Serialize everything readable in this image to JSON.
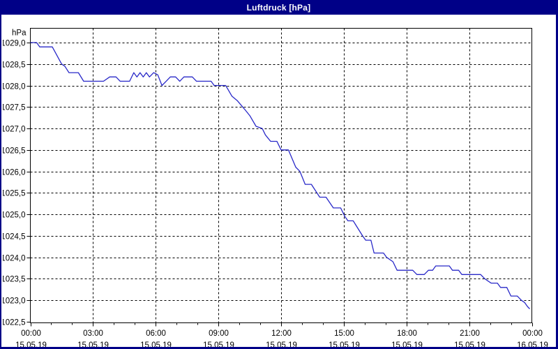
{
  "window": {
    "title": "Luftdruck [hPa]"
  },
  "colors": {
    "titlebar_bg": "#000087",
    "titlebar_text": "#FFFFFF",
    "window_border": "#000087",
    "page_bg": "#FFFFFF",
    "frame": "#000000",
    "grid": "#000000",
    "tick_text": "#000000",
    "line": "#2828C8"
  },
  "chart_data": {
    "type": "line",
    "title": "Luftdruck [hPa]",
    "ylabel": "hPa",
    "unit_label": "hPa",
    "xlabel": "",
    "ylim": [
      1022.5,
      1029.35
    ],
    "xlim_hours": [
      0,
      24
    ],
    "grid": "dashed",
    "legend_position": "none",
    "y_ticks": [
      {
        "value": 1029.0,
        "label": "1029,0"
      },
      {
        "value": 1028.5,
        "label": "1028,5"
      },
      {
        "value": 1028.0,
        "label": "1028,0"
      },
      {
        "value": 1027.5,
        "label": "1027,5"
      },
      {
        "value": 1027.0,
        "label": "1027,0"
      },
      {
        "value": 1026.5,
        "label": "1026,5"
      },
      {
        "value": 1026.0,
        "label": "1026,0"
      },
      {
        "value": 1025.5,
        "label": "1025,5"
      },
      {
        "value": 1025.0,
        "label": "1025,0"
      },
      {
        "value": 1024.5,
        "label": "1024,5"
      },
      {
        "value": 1024.0,
        "label": "1024,0"
      },
      {
        "value": 1023.5,
        "label": "1023,5"
      },
      {
        "value": 1023.0,
        "label": "1023,0"
      },
      {
        "value": 1022.5,
        "label": "1022,5"
      }
    ],
    "x_ticks": [
      {
        "hour": 0,
        "time": "00:00",
        "date": "15.05.19"
      },
      {
        "hour": 3,
        "time": "03:00",
        "date": "15.05.19"
      },
      {
        "hour": 6,
        "time": "06:00",
        "date": "15.05.19"
      },
      {
        "hour": 9,
        "time": "09:00",
        "date": "15.05.19"
      },
      {
        "hour": 12,
        "time": "12:00",
        "date": "15.05.19"
      },
      {
        "hour": 15,
        "time": "15:00",
        "date": "15.05.19"
      },
      {
        "hour": 18,
        "time": "18:00",
        "date": "15.05.19"
      },
      {
        "hour": 21,
        "time": "21:00",
        "date": "15.05.19"
      },
      {
        "hour": 24,
        "time": "00:00",
        "date": "16.05.19"
      }
    ],
    "minor_x_tick_every_hours": 1,
    "series": [
      {
        "name": "Luftdruck",
        "unit": "hPa",
        "points": [
          [
            0.0,
            1029.0
          ],
          [
            0.3,
            1029.0
          ],
          [
            0.45,
            1028.9
          ],
          [
            1.05,
            1028.9
          ],
          [
            1.5,
            1028.5
          ],
          [
            1.65,
            1028.45
          ],
          [
            1.85,
            1028.3
          ],
          [
            2.3,
            1028.3
          ],
          [
            2.55,
            1028.1
          ],
          [
            3.5,
            1028.1
          ],
          [
            3.8,
            1028.2
          ],
          [
            4.1,
            1028.2
          ],
          [
            4.3,
            1028.1
          ],
          [
            4.75,
            1028.1
          ],
          [
            4.95,
            1028.3
          ],
          [
            5.1,
            1028.2
          ],
          [
            5.25,
            1028.3
          ],
          [
            5.4,
            1028.2
          ],
          [
            5.55,
            1028.3
          ],
          [
            5.7,
            1028.2
          ],
          [
            5.9,
            1028.3
          ],
          [
            6.1,
            1028.25
          ],
          [
            6.3,
            1028.0
          ],
          [
            6.5,
            1028.1
          ],
          [
            6.7,
            1028.2
          ],
          [
            6.95,
            1028.2
          ],
          [
            7.15,
            1028.1
          ],
          [
            7.35,
            1028.2
          ],
          [
            7.75,
            1028.2
          ],
          [
            7.95,
            1028.1
          ],
          [
            8.65,
            1028.1
          ],
          [
            8.8,
            1028.0
          ],
          [
            9.35,
            1028.0
          ],
          [
            9.65,
            1027.75
          ],
          [
            9.9,
            1027.65
          ],
          [
            10.25,
            1027.45
          ],
          [
            10.5,
            1027.3
          ],
          [
            10.8,
            1027.05
          ],
          [
            11.1,
            1027.0
          ],
          [
            11.25,
            1026.85
          ],
          [
            11.5,
            1026.7
          ],
          [
            11.8,
            1026.7
          ],
          [
            12.0,
            1026.5
          ],
          [
            12.35,
            1026.5
          ],
          [
            12.7,
            1026.1
          ],
          [
            12.9,
            1026.0
          ],
          [
            13.15,
            1025.7
          ],
          [
            13.45,
            1025.7
          ],
          [
            13.85,
            1025.4
          ],
          [
            14.15,
            1025.4
          ],
          [
            14.5,
            1025.15
          ],
          [
            14.85,
            1025.15
          ],
          [
            15.05,
            1024.95
          ],
          [
            15.2,
            1024.85
          ],
          [
            15.45,
            1024.85
          ],
          [
            15.9,
            1024.5
          ],
          [
            16.05,
            1024.4
          ],
          [
            16.3,
            1024.4
          ],
          [
            16.45,
            1024.1
          ],
          [
            16.9,
            1024.1
          ],
          [
            17.05,
            1024.0
          ],
          [
            17.35,
            1023.9
          ],
          [
            17.55,
            1023.7
          ],
          [
            18.3,
            1023.7
          ],
          [
            18.5,
            1023.6
          ],
          [
            18.85,
            1023.6
          ],
          [
            19.05,
            1023.7
          ],
          [
            19.25,
            1023.7
          ],
          [
            19.4,
            1023.8
          ],
          [
            20.05,
            1023.8
          ],
          [
            20.2,
            1023.7
          ],
          [
            20.5,
            1023.7
          ],
          [
            20.65,
            1023.6
          ],
          [
            21.55,
            1023.6
          ],
          [
            21.75,
            1023.5
          ],
          [
            22.05,
            1023.4
          ],
          [
            22.35,
            1023.4
          ],
          [
            22.5,
            1023.3
          ],
          [
            22.8,
            1023.3
          ],
          [
            23.0,
            1023.1
          ],
          [
            23.3,
            1023.1
          ],
          [
            23.5,
            1023.0
          ],
          [
            23.65,
            1022.95
          ],
          [
            23.8,
            1022.85
          ],
          [
            23.9,
            1022.8
          ]
        ]
      }
    ]
  }
}
